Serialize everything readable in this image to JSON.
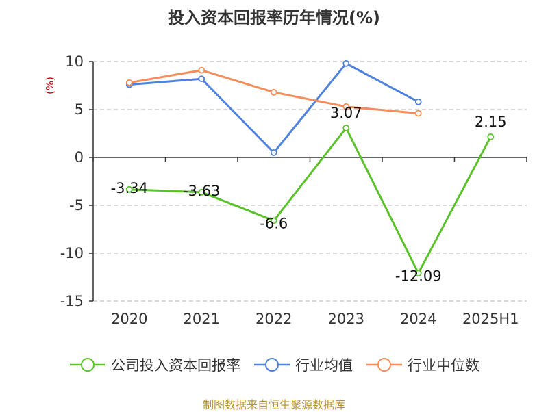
{
  "title": "投入资本回报率历年情况(%)",
  "source": "制图数据来自恒生聚源数据库",
  "chart_data": {
    "type": "line",
    "title": "投入资本回报率历年情况(%)",
    "ylabel": "(%)",
    "ylabel_color": "#cc0000",
    "categories": [
      "2020",
      "2021",
      "2022",
      "2023",
      "2024",
      "2025H1"
    ],
    "ylim": [
      -15,
      10
    ],
    "yticks": [
      10,
      5,
      0,
      -5,
      -10,
      -15
    ],
    "grid": "dashed horizontal",
    "legend_position": "bottom",
    "series": [
      {
        "name": "公司投入资本回报率",
        "color": "#5ac229",
        "values": [
          -3.34,
          -3.63,
          -6.6,
          3.07,
          -12.09,
          2.15
        ],
        "labels": [
          "-3.34",
          "-3.63",
          "-6.6",
          "3.07",
          "-12.09",
          "2.15"
        ]
      },
      {
        "name": "行业均值",
        "color": "#4f81e0",
        "values": [
          7.6,
          8.2,
          0.5,
          9.8,
          5.8,
          null
        ]
      },
      {
        "name": "行业中位数",
        "color": "#f58c5a",
        "values": [
          7.8,
          9.1,
          6.8,
          5.3,
          4.6,
          null
        ]
      }
    ]
  }
}
